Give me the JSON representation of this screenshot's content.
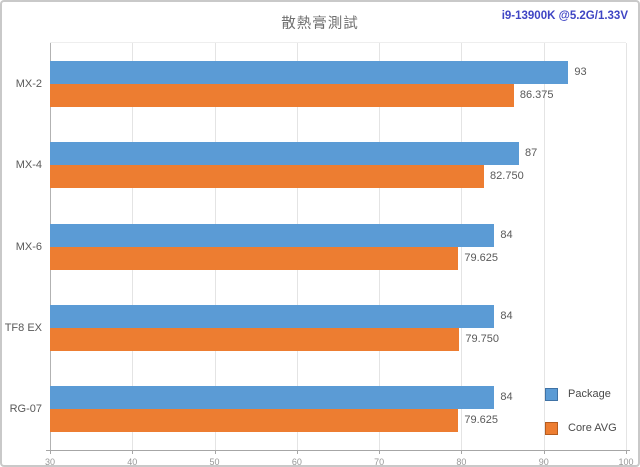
{
  "header": {
    "title": "散熱膏測試",
    "subtitle": "i9-13900K @5.2G/1.33V",
    "subtitle_color": "#3f45c4"
  },
  "chart_data": {
    "type": "bar",
    "orientation": "horizontal",
    "title": "散熱膏測試",
    "xlabel": "",
    "ylabel": "",
    "categories": [
      "MX-2",
      "MX-4",
      "MX-6",
      "TF8 EX",
      "RG-07"
    ],
    "series": [
      {
        "name": "Package",
        "color": "#5B9BD5",
        "border_color": "#3f72a5",
        "values": [
          93,
          87,
          84,
          84,
          84
        ],
        "labels": [
          "93",
          "87",
          "84",
          "84",
          "84"
        ]
      },
      {
        "name": "Core AVG",
        "color": "#ED7D31",
        "border_color": "#b55c1f",
        "values": [
          86.375,
          82.75,
          79.625,
          79.75,
          79.625
        ],
        "labels": [
          "86.375",
          "82.750",
          "79.625",
          "79.750",
          "79.625"
        ]
      }
    ],
    "xlim": [
      30,
      100
    ],
    "xticks": [
      30,
      40,
      50,
      60,
      70,
      80,
      90,
      100
    ],
    "grid": true,
    "legend_position": "bottom-right"
  }
}
